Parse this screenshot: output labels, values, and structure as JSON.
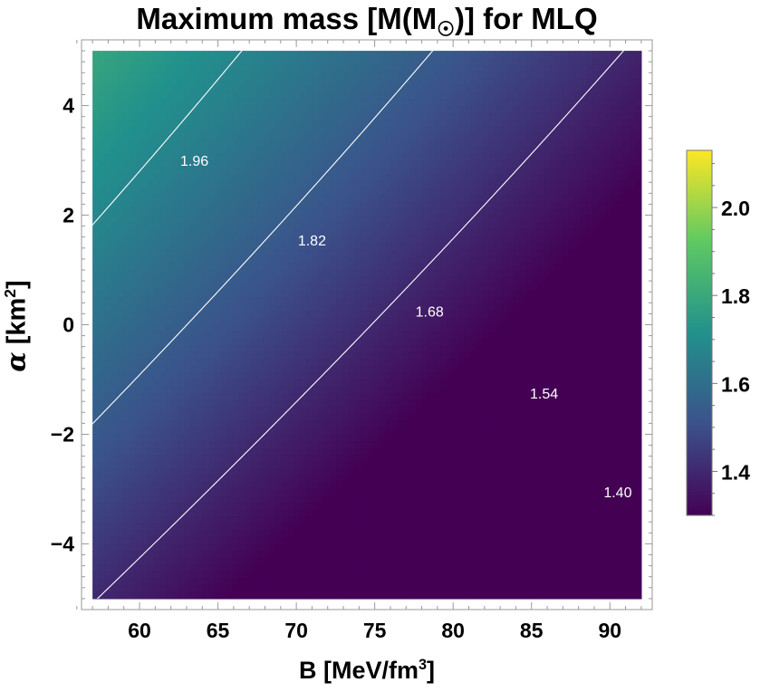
{
  "title_parts": {
    "main": "Maximum mass [M(M",
    "sun": "☉",
    "end": ")] for MLQ"
  },
  "xlabel_parts": {
    "main": "B [MeV/fm",
    "sup": "3",
    "end": "]"
  },
  "ylabel_parts": {
    "alpha": "α",
    "main": " [km",
    "sup": "2",
    "end": "]"
  },
  "chart_data": {
    "type": "heatmap",
    "subtype": "contour",
    "title": "Maximum mass [M(M☉)] for MLQ",
    "xlabel": "B [MeV/fm³]",
    "ylabel": "α [km²]",
    "xlim": [
      57,
      92
    ],
    "ylim": [
      -5,
      5
    ],
    "frame_xlim": [
      56.3,
      92.7
    ],
    "frame_ylim": [
      -5.2,
      5.2
    ],
    "x_ticks": [
      60,
      65,
      70,
      75,
      80,
      85,
      90
    ],
    "x_tick_labels": [
      "60",
      "65",
      "70",
      "75",
      "80",
      "85",
      "90"
    ],
    "y_ticks": [
      -4,
      -2,
      0,
      2,
      4
    ],
    "y_tick_labels": [
      "−4",
      "−2",
      "0",
      "2",
      "4"
    ],
    "colormap": [
      "#440154",
      "#3b528b",
      "#21918c",
      "#5ec962",
      "#fde725"
    ],
    "color_range": [
      1.3,
      2.13
    ],
    "colorbar_ticks": [
      1.4,
      1.6,
      1.8,
      2.0
    ],
    "colorbar_tick_labels": [
      "1.4",
      "1.6",
      "1.8",
      "2.0"
    ],
    "contour_color": "#ffffff",
    "field_model": {
      "description": "approximate M(B, alpha) read from contours",
      "c0": 2.29,
      "cB": -0.0119,
      "cA": 0.034,
      "cAA": -0.0006,
      "cAB": 8e-05
    },
    "contours": [
      {
        "level": 1.96,
        "label": "1.96",
        "label_at": [
          63.5,
          3.0
        ]
      },
      {
        "level": 1.82,
        "label": "1.82",
        "label_at": [
          71.0,
          1.55
        ]
      },
      {
        "level": 1.68,
        "label": "1.68",
        "label_at": [
          78.5,
          0.25
        ]
      },
      {
        "level": 1.54,
        "label": "1.54",
        "label_at": [
          85.8,
          -1.25
        ]
      },
      {
        "level": 1.4,
        "label": "1.40",
        "label_at": [
          90.5,
          -3.05
        ]
      }
    ]
  }
}
